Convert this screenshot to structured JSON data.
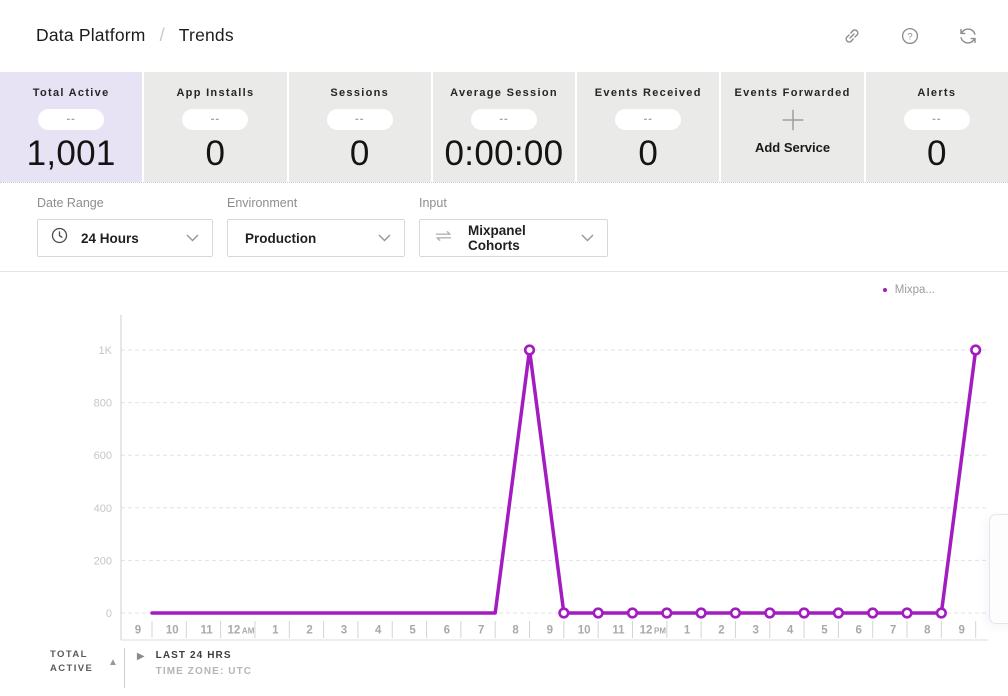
{
  "header": {
    "breadcrumb": {
      "section": "Data Platform",
      "separator": "/",
      "page": "Trends"
    },
    "icons": [
      "link",
      "help",
      "refresh"
    ]
  },
  "stats": {
    "cards": [
      {
        "label": "Total Active",
        "badge": "--",
        "value": "1,001",
        "active": true
      },
      {
        "label": "App Installs",
        "badge": "--",
        "value": "0"
      },
      {
        "label": "Sessions",
        "badge": "--",
        "value": "0"
      },
      {
        "label": "Average Session",
        "badge": "--",
        "value": "0:00:00"
      },
      {
        "label": "Events Received",
        "badge": "--",
        "value": "0"
      },
      {
        "label": "Events Forwarded",
        "action_label": "Add Service"
      },
      {
        "label": "Alerts",
        "badge": "--",
        "value": "0"
      }
    ]
  },
  "filters": {
    "date_range": {
      "label": "Date Range",
      "value": "24 Hours",
      "icon": "clock"
    },
    "environment": {
      "label": "Environment",
      "value": "Production"
    },
    "input": {
      "label": "Input",
      "value": "Mixpanel Cohorts",
      "icon": "transfer-arrows"
    }
  },
  "chart_data": {
    "type": "line",
    "x_labels": [
      "9",
      "10",
      "11",
      "12AM",
      "1",
      "2",
      "3",
      "4",
      "5",
      "6",
      "7",
      "8",
      "9",
      "10",
      "11",
      "12PM",
      "1",
      "2",
      "3",
      "4",
      "5",
      "6",
      "7",
      "8",
      "9"
    ],
    "series": [
      {
        "name": "Mixpanel",
        "color": "#a31cc0",
        "values": [
          0,
          0,
          0,
          0,
          0,
          0,
          0,
          0,
          0,
          0,
          0,
          1001,
          0,
          0,
          0,
          0,
          0,
          0,
          0,
          0,
          0,
          0,
          0,
          0,
          1001
        ],
        "markers_from_index": 11
      }
    ],
    "y_ticks": [
      {
        "label": "0",
        "value": 0
      },
      {
        "label": "200",
        "value": 200
      },
      {
        "label": "400",
        "value": 400
      },
      {
        "label": "600",
        "value": 600
      },
      {
        "label": "800",
        "value": 800
      },
      {
        "label": "1K",
        "value": 1000
      }
    ],
    "ylim": [
      0,
      1000
    ],
    "grid": "dashed-horizontal",
    "legend": {
      "label": "Mixpa...",
      "position": "top-right",
      "color": "#a31cc0"
    }
  },
  "footer": {
    "metric": "TOTAL ACTIVE",
    "range": "LAST 24 HRS",
    "timezone": "TIME ZONE: UTC"
  },
  "colors": {
    "accent_purple": "#a31cc0",
    "active_card_bg": "#e7e3f4",
    "card_bg": "#eaeae8"
  }
}
